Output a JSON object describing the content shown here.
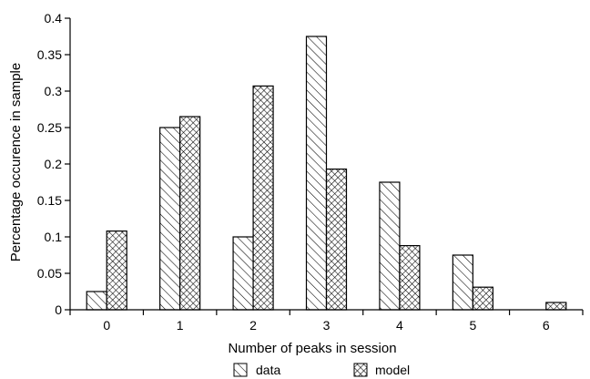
{
  "chart_data": {
    "type": "bar",
    "xlabel": "Number of peaks in session",
    "ylabel": "Percentage occurence in sample",
    "categories": [
      "0",
      "1",
      "2",
      "3",
      "4",
      "5",
      "6"
    ],
    "ylim": [
      0,
      0.4
    ],
    "yticks": [
      0,
      0.05,
      0.1,
      0.15,
      0.2,
      0.25,
      0.3,
      0.35,
      0.4
    ],
    "ytick_labels": [
      "0",
      "0.05",
      "0.1",
      "0.15",
      "0.2",
      "0.25",
      "0.3",
      "0.35",
      "0.4"
    ],
    "grid": false,
    "legend_position": "bottom",
    "series": [
      {
        "name": "data",
        "pattern": "diagonal-hatch",
        "values": [
          0.025,
          0.25,
          0.1,
          0.375,
          0.175,
          0.075,
          0
        ]
      },
      {
        "name": "model",
        "pattern": "cross-hatch",
        "values": [
          0.108,
          0.265,
          0.307,
          0.193,
          0.088,
          0.031,
          0.01
        ]
      }
    ],
    "colors": {
      "stroke": "#000000",
      "fill": "#ffffff"
    }
  }
}
